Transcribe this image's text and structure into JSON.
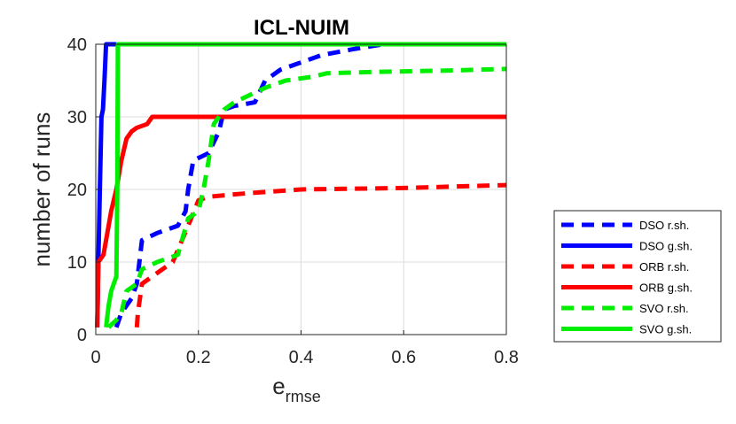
{
  "chart_data": {
    "type": "line",
    "title": "ICL-NUIM",
    "xlabel_main": "e",
    "xlabel_sub": "rmse",
    "ylabel": "number of runs",
    "xlim": [
      0,
      0.8
    ],
    "ylim": [
      0,
      40
    ],
    "xticks": [
      0,
      0.2,
      0.4,
      0.6,
      0.8
    ],
    "xtick_labels": [
      "0",
      "0.2",
      "0.4",
      "0.6",
      "0.8"
    ],
    "yticks": [
      0,
      10,
      20,
      30,
      40
    ],
    "ytick_labels": [
      "0",
      "10",
      "20",
      "30",
      "40"
    ],
    "grid": true,
    "legend_position": "right",
    "series": [
      {
        "name": "DSO r.sh.",
        "color": "#0000ff",
        "style": "dashed",
        "points": [
          [
            0.04,
            1
          ],
          [
            0.05,
            3
          ],
          [
            0.07,
            5
          ],
          [
            0.08,
            7
          ],
          [
            0.085,
            10
          ],
          [
            0.09,
            13
          ],
          [
            0.12,
            14
          ],
          [
            0.16,
            15
          ],
          [
            0.175,
            17
          ],
          [
            0.18,
            20
          ],
          [
            0.19,
            24
          ],
          [
            0.22,
            25
          ],
          [
            0.24,
            28
          ],
          [
            0.25,
            31
          ],
          [
            0.27,
            31.5
          ],
          [
            0.31,
            32
          ],
          [
            0.33,
            35
          ],
          [
            0.36,
            36.5
          ],
          [
            0.4,
            37.5
          ],
          [
            0.44,
            38.5
          ],
          [
            0.5,
            39.3
          ],
          [
            0.56,
            40
          ]
        ]
      },
      {
        "name": "DSO g.sh.",
        "color": "#0000ff",
        "style": "solid",
        "points": [
          [
            0.003,
            1
          ],
          [
            0.005,
            10
          ],
          [
            0.008,
            20
          ],
          [
            0.011,
            30
          ],
          [
            0.014,
            31
          ],
          [
            0.017,
            35
          ],
          [
            0.02,
            40
          ],
          [
            0.04,
            40
          ]
        ]
      },
      {
        "name": "ORB r.sh.",
        "color": "#ff0000",
        "style": "dashed",
        "points": [
          [
            0.08,
            1
          ],
          [
            0.082,
            3
          ],
          [
            0.09,
            7
          ],
          [
            0.12,
            8.5
          ],
          [
            0.15,
            10
          ],
          [
            0.18,
            15
          ],
          [
            0.2,
            18.5
          ],
          [
            0.22,
            19
          ],
          [
            0.3,
            19.5
          ],
          [
            0.4,
            20
          ],
          [
            0.5,
            20.1
          ],
          [
            0.6,
            20.2
          ],
          [
            0.7,
            20.4
          ],
          [
            0.8,
            20.6
          ]
        ]
      },
      {
        "name": "ORB g.sh.",
        "color": "#ff0000",
        "style": "solid",
        "points": [
          [
            0.003,
            1
          ],
          [
            0.005,
            10
          ],
          [
            0.015,
            11
          ],
          [
            0.02,
            13
          ],
          [
            0.03,
            17
          ],
          [
            0.04,
            20
          ],
          [
            0.05,
            24
          ],
          [
            0.06,
            27
          ],
          [
            0.07,
            28
          ],
          [
            0.08,
            28.5
          ],
          [
            0.1,
            29
          ],
          [
            0.11,
            30
          ],
          [
            0.8,
            30
          ]
        ]
      },
      {
        "name": "SVO r.sh.",
        "color": "#00ee00",
        "style": "dashed",
        "points": [
          [
            0.025,
            1
          ],
          [
            0.04,
            2
          ],
          [
            0.05,
            3
          ],
          [
            0.06,
            6
          ],
          [
            0.08,
            7
          ],
          [
            0.09,
            9
          ],
          [
            0.12,
            10
          ],
          [
            0.16,
            11
          ],
          [
            0.18,
            16
          ],
          [
            0.2,
            17
          ],
          [
            0.21,
            20
          ],
          [
            0.22,
            24
          ],
          [
            0.23,
            29
          ],
          [
            0.25,
            31
          ],
          [
            0.27,
            32
          ],
          [
            0.3,
            33
          ],
          [
            0.33,
            34
          ],
          [
            0.37,
            35
          ],
          [
            0.42,
            35.5
          ],
          [
            0.45,
            36
          ],
          [
            0.55,
            36.2
          ],
          [
            0.7,
            36.4
          ],
          [
            0.8,
            36.6
          ]
        ]
      },
      {
        "name": "SVO g.sh.",
        "color": "#00ee00",
        "style": "solid",
        "points": [
          [
            0.02,
            1
          ],
          [
            0.025,
            4
          ],
          [
            0.03,
            6
          ],
          [
            0.035,
            7
          ],
          [
            0.04,
            8
          ],
          [
            0.042,
            20
          ],
          [
            0.043,
            40
          ],
          [
            0.8,
            40
          ]
        ]
      }
    ]
  }
}
